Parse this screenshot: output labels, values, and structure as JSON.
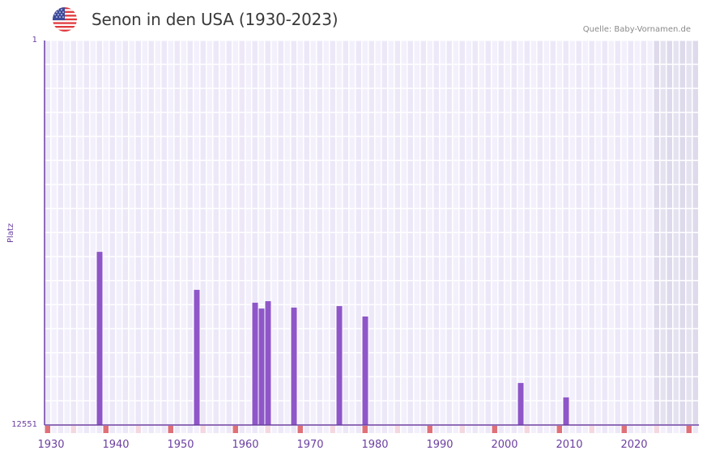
{
  "header": {
    "title": "Senon in den USA (1930-2023)",
    "flag_icon": "us-flag-icon",
    "source": "Quelle: Baby-Vornamen.de"
  },
  "axes": {
    "ylabel": "Platz",
    "ytick_top": "1",
    "ytick_bottom": "12551",
    "xticks": [
      "1930",
      "1940",
      "1950",
      "1960",
      "1970",
      "1980",
      "1990",
      "2000",
      "2010",
      "2020"
    ]
  },
  "colors": {
    "bar": "#8e56c8",
    "axis": "#6b3fa0",
    "grid_a": "#ede8f8",
    "grid_b": "#f3f0fc",
    "future_shade": "#e2dfee",
    "marker_strong": "#e07078",
    "marker_light": "#f4d8e0"
  },
  "chart_data": {
    "type": "bar",
    "title": "Senon in den USA (1930-2023)",
    "xlabel": "",
    "ylabel": "Platz",
    "y_inverted": true,
    "ylim": [
      1,
      12551
    ],
    "xlim": [
      1929,
      2029
    ],
    "x_tick_labels": [
      "1930",
      "1940",
      "1950",
      "1960",
      "1970",
      "1980",
      "1990",
      "2000",
      "2010",
      "2020"
    ],
    "grid": true,
    "legend": null,
    "annotation": "Quelle: Baby-Vornamen.de",
    "categories": [
      "1937",
      "1952",
      "1961",
      "1962",
      "1963",
      "1967",
      "1974",
      "1978",
      "2002",
      "2009"
    ],
    "values": [
      6900,
      8140,
      8560,
      8750,
      8510,
      8720,
      8670,
      9010,
      11180,
      11650
    ]
  }
}
